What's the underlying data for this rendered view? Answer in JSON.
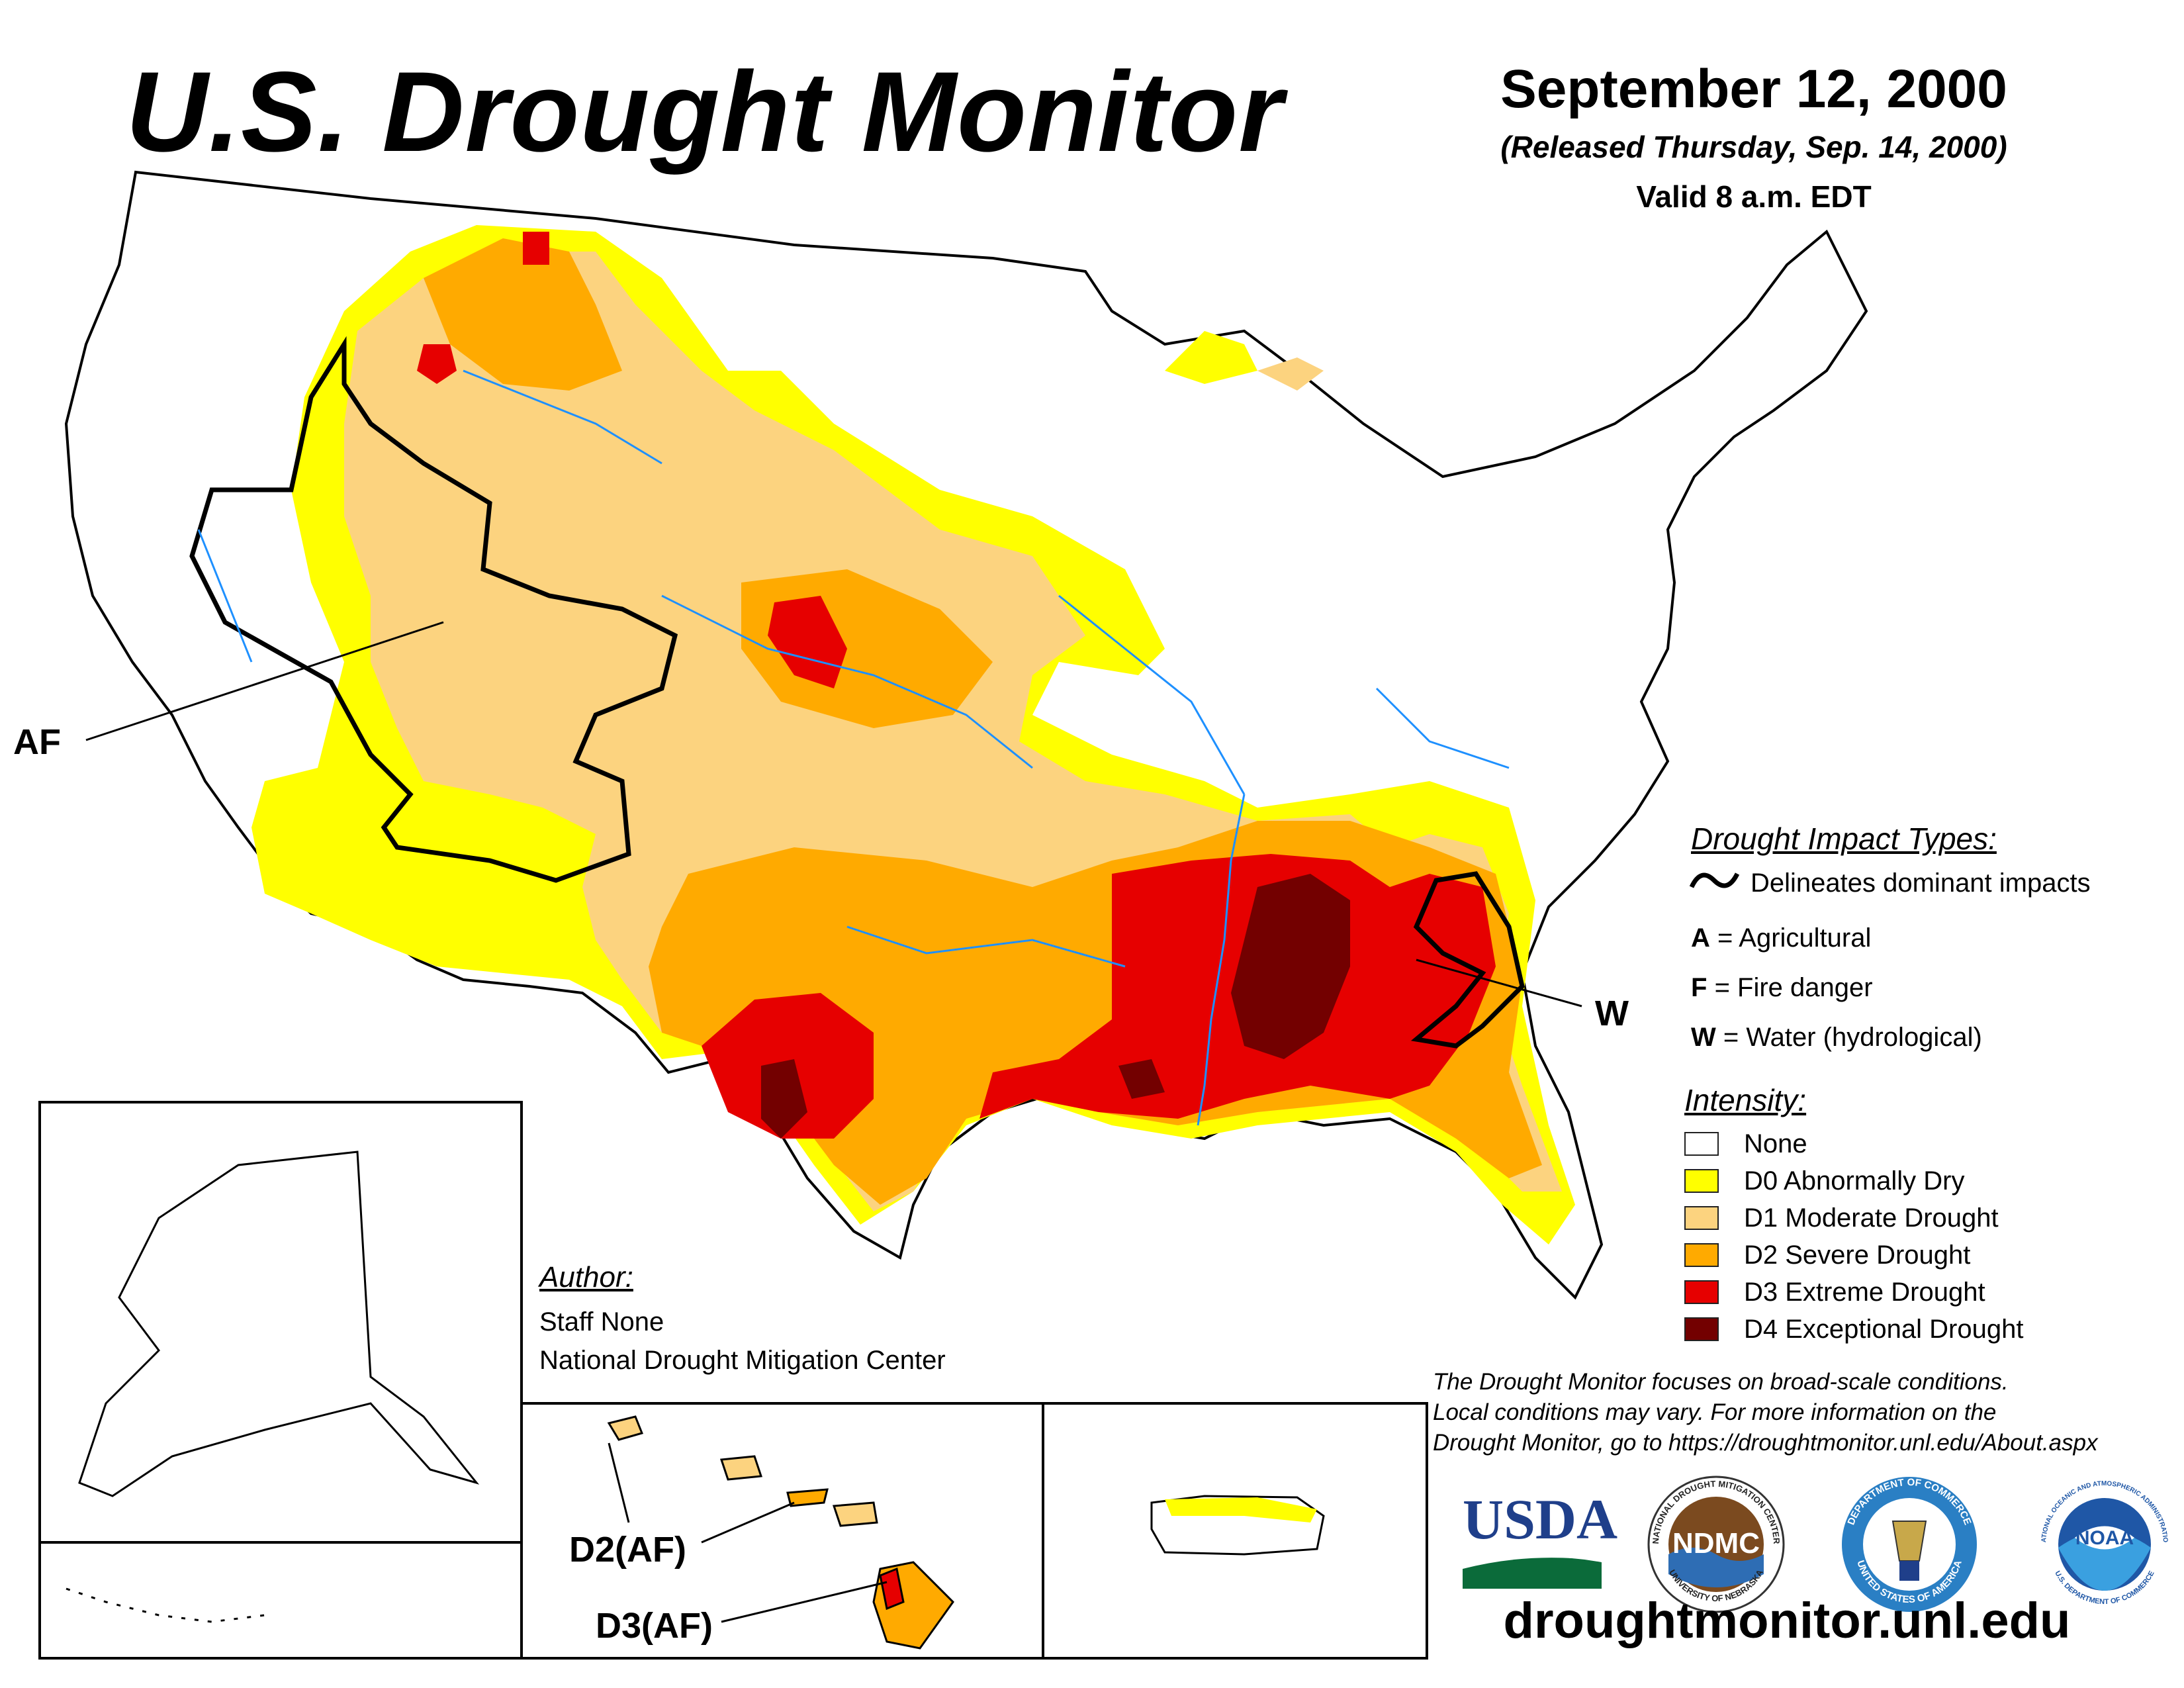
{
  "header": {
    "title": "U.S. Drought Monitor",
    "date": "September 12, 2000",
    "released": "(Released Thursday, Sep. 14, 2000)",
    "valid": "Valid 8 a.m. EDT"
  },
  "map_labels": {
    "af": "AF",
    "w": "W",
    "hawaii_d2": "D2(AF)",
    "hawaii_d3": "D3(AF)"
  },
  "impact_legend": {
    "title": "Drought Impact Types:",
    "delineates": "Delineates dominant impacts",
    "items": [
      {
        "code": "A",
        "text": "= Agricultural"
      },
      {
        "code": "F",
        "text": "= Fire danger"
      },
      {
        "code": "W",
        "text": "= Water (hydrological)"
      }
    ]
  },
  "intensity_legend": {
    "title": "Intensity:",
    "items": [
      {
        "label": "None",
        "color": "#ffffff"
      },
      {
        "label": "D0 Abnormally Dry",
        "color": "#ffff00"
      },
      {
        "label": "D1 Moderate Drought",
        "color": "#fcd37f"
      },
      {
        "label": "D2 Severe Drought",
        "color": "#ffaa00"
      },
      {
        "label": "D3 Extreme Drought",
        "color": "#e60000"
      },
      {
        "label": "D4 Exceptional Drought",
        "color": "#730000"
      }
    ]
  },
  "author": {
    "title": "Author:",
    "name": "Staff None",
    "org": "National Drought Mitigation Center"
  },
  "note": {
    "line1": "The Drought Monitor focuses on broad-scale conditions.",
    "line2": "Local conditions may vary. For more information on the",
    "line3": "Drought Monitor, go to https://droughtmonitor.unl.edu/About.aspx"
  },
  "logos": {
    "usda": "USDA",
    "ndmc": "NDMC",
    "ndmc_ring_top": "NATIONAL DROUGHT MITIGATION CENTER",
    "ndmc_ring_bottom": "UNIVERSITY OF NEBRASKA",
    "commerce_ring_top": "DEPARTMENT OF COMMERCE",
    "commerce_ring_bottom": "UNITED STATES OF AMERICA",
    "noaa": "NOAA",
    "noaa_ring_top": "NATIONAL OCEANIC AND ATMOSPHERIC ADMINISTRATION",
    "noaa_ring_bottom": "U.S. DEPARTMENT OF COMMERCE"
  },
  "url": "droughtmonitor.unl.edu",
  "colors": {
    "d0": "#ffff00",
    "d1": "#fcd37f",
    "d2": "#ffaa00",
    "d3": "#e60000",
    "d4": "#730000",
    "water": "#1e90ff"
  }
}
